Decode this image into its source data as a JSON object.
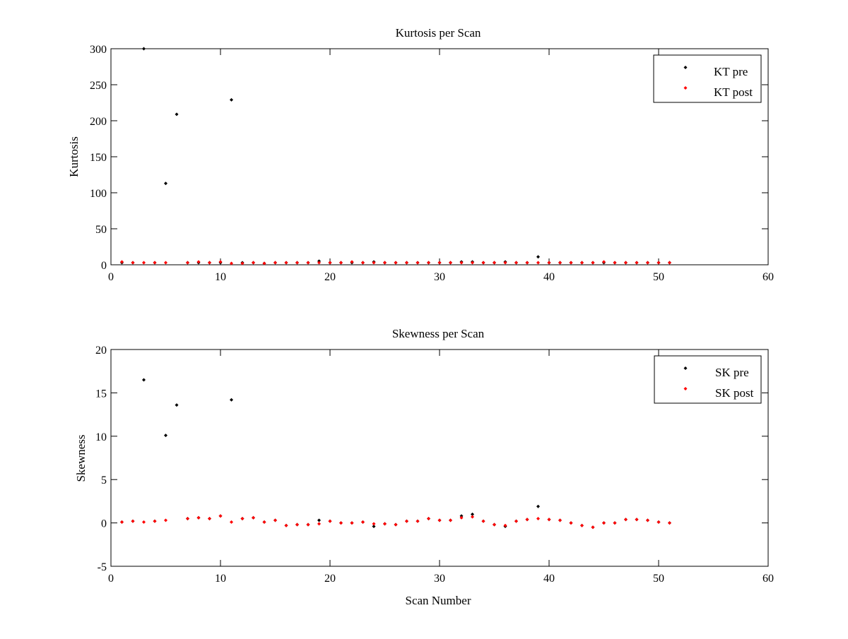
{
  "figure": {
    "background": "#ffffff",
    "colors": {
      "pre": "#000000",
      "post": "#ff0000"
    }
  },
  "chart_data": [
    {
      "type": "scatter",
      "title": "Kurtosis per Scan",
      "xlabel": "",
      "ylabel": "Kurtosis",
      "xlim": [
        0,
        60
      ],
      "ylim": [
        0,
        300
      ],
      "xticks": [
        0,
        10,
        20,
        30,
        40,
        50,
        60
      ],
      "yticks": [
        0,
        50,
        100,
        150,
        200,
        250,
        300
      ],
      "grid": false,
      "legend_position": "top-right",
      "series": [
        {
          "name": "KT pre",
          "color": "#000000",
          "marker": "dot",
          "points": [
            [
              1,
              3
            ],
            [
              2,
              3
            ],
            [
              3,
              300
            ],
            [
              4,
              3
            ],
            [
              5,
              113
            ],
            [
              6,
              209
            ],
            [
              7,
              3
            ],
            [
              8,
              3
            ],
            [
              9,
              3
            ],
            [
              10,
              3
            ],
            [
              11,
              229
            ],
            [
              12,
              3
            ],
            [
              13,
              3
            ],
            [
              14,
              2
            ],
            [
              15,
              3
            ],
            [
              16,
              3
            ],
            [
              17,
              3
            ],
            [
              18,
              3
            ],
            [
              19,
              5
            ],
            [
              20,
              3
            ],
            [
              21,
              3
            ],
            [
              22,
              3
            ],
            [
              23,
              3
            ],
            [
              24,
              4
            ],
            [
              25,
              3
            ],
            [
              26,
              3
            ],
            [
              27,
              3
            ],
            [
              28,
              3
            ],
            [
              29,
              3
            ],
            [
              30,
              3
            ],
            [
              31,
              3
            ],
            [
              32,
              4
            ],
            [
              33,
              4
            ],
            [
              34,
              3
            ],
            [
              35,
              3
            ],
            [
              36,
              4
            ],
            [
              37,
              3
            ],
            [
              38,
              3
            ],
            [
              39,
              11
            ],
            [
              40,
              3
            ],
            [
              41,
              3
            ],
            [
              42,
              3
            ],
            [
              43,
              3
            ],
            [
              44,
              3
            ],
            [
              45,
              3
            ],
            [
              46,
              3
            ],
            [
              47,
              3
            ],
            [
              48,
              3
            ],
            [
              49,
              3
            ],
            [
              50,
              3
            ],
            [
              51,
              3
            ]
          ]
        },
        {
          "name": "KT post",
          "color": "#ff0000",
          "marker": "dot",
          "points": [
            [
              1,
              4
            ],
            [
              2,
              3
            ],
            [
              3,
              3
            ],
            [
              4,
              3
            ],
            [
              5,
              3
            ],
            [
              7,
              3
            ],
            [
              8,
              4
            ],
            [
              9,
              3
            ],
            [
              10,
              4
            ],
            [
              11,
              2
            ],
            [
              12,
              2
            ],
            [
              13,
              3
            ],
            [
              14,
              2
            ],
            [
              15,
              3
            ],
            [
              16,
              3
            ],
            [
              17,
              3
            ],
            [
              18,
              3
            ],
            [
              19,
              3
            ],
            [
              20,
              3
            ],
            [
              21,
              3
            ],
            [
              22,
              4
            ],
            [
              23,
              3
            ],
            [
              24,
              3
            ],
            [
              25,
              3
            ],
            [
              26,
              3
            ],
            [
              27,
              3
            ],
            [
              28,
              3
            ],
            [
              29,
              3
            ],
            [
              30,
              3
            ],
            [
              31,
              3
            ],
            [
              32,
              3
            ],
            [
              33,
              3
            ],
            [
              34,
              3
            ],
            [
              35,
              3
            ],
            [
              36,
              3
            ],
            [
              37,
              3
            ],
            [
              38,
              3
            ],
            [
              39,
              3
            ],
            [
              40,
              3
            ],
            [
              41,
              3
            ],
            [
              42,
              3
            ],
            [
              43,
              3
            ],
            [
              44,
              3
            ],
            [
              45,
              4
            ],
            [
              46,
              3
            ],
            [
              47,
              3
            ],
            [
              48,
              3
            ],
            [
              49,
              3
            ],
            [
              50,
              3
            ],
            [
              51,
              3
            ]
          ]
        }
      ]
    },
    {
      "type": "scatter",
      "title": "Skewness per Scan",
      "xlabel": "Scan Number",
      "ylabel": "Skewness",
      "xlim": [
        0,
        60
      ],
      "ylim": [
        -5,
        20
      ],
      "xticks": [
        0,
        10,
        20,
        30,
        40,
        50,
        60
      ],
      "yticks": [
        -5,
        0,
        5,
        10,
        15,
        20
      ],
      "grid": false,
      "legend_position": "top-right",
      "series": [
        {
          "name": "SK pre",
          "color": "#000000",
          "marker": "dot",
          "points": [
            [
              1,
              0.1
            ],
            [
              2,
              0.2
            ],
            [
              3,
              16.5
            ],
            [
              4,
              0.2
            ],
            [
              5,
              10.1
            ],
            [
              6,
              13.6
            ],
            [
              7,
              0.5
            ],
            [
              8,
              0.6
            ],
            [
              9,
              0.5
            ],
            [
              10,
              0.8
            ],
            [
              11,
              14.2
            ],
            [
              12,
              0.5
            ],
            [
              13,
              0.6
            ],
            [
              14,
              0.1
            ],
            [
              15,
              0.3
            ],
            [
              16,
              -0.3
            ],
            [
              17,
              -0.2
            ],
            [
              18,
              -0.2
            ],
            [
              19,
              0.3
            ],
            [
              20,
              0.2
            ],
            [
              21,
              0.0
            ],
            [
              22,
              0.0
            ],
            [
              23,
              0.1
            ],
            [
              24,
              -0.4
            ],
            [
              25,
              -0.1
            ],
            [
              26,
              -0.2
            ],
            [
              27,
              0.2
            ],
            [
              28,
              0.2
            ],
            [
              29,
              0.5
            ],
            [
              30,
              0.3
            ],
            [
              31,
              0.3
            ],
            [
              32,
              0.8
            ],
            [
              33,
              1.0
            ],
            [
              34,
              0.2
            ],
            [
              35,
              -0.2
            ],
            [
              36,
              -0.4
            ],
            [
              37,
              0.2
            ],
            [
              38,
              0.4
            ],
            [
              39,
              1.9
            ],
            [
              40,
              0.4
            ],
            [
              41,
              0.3
            ],
            [
              42,
              0.0
            ],
            [
              43,
              -0.3
            ],
            [
              44,
              -0.5
            ],
            [
              45,
              0.0
            ],
            [
              46,
              0.0
            ],
            [
              47,
              0.4
            ],
            [
              48,
              0.4
            ],
            [
              49,
              0.3
            ],
            [
              50,
              0.1
            ],
            [
              51,
              0.0
            ]
          ]
        },
        {
          "name": "SK post",
          "color": "#ff0000",
          "marker": "dot",
          "points": [
            [
              1,
              0.1
            ],
            [
              2,
              0.2
            ],
            [
              3,
              0.1
            ],
            [
              4,
              0.2
            ],
            [
              5,
              0.3
            ],
            [
              7,
              0.5
            ],
            [
              8,
              0.6
            ],
            [
              9,
              0.5
            ],
            [
              10,
              0.8
            ],
            [
              11,
              0.1
            ],
            [
              12,
              0.5
            ],
            [
              13,
              0.6
            ],
            [
              14,
              0.1
            ],
            [
              15,
              0.3
            ],
            [
              16,
              -0.3
            ],
            [
              17,
              -0.2
            ],
            [
              18,
              -0.2
            ],
            [
              19,
              -0.1
            ],
            [
              20,
              0.2
            ],
            [
              21,
              0.0
            ],
            [
              22,
              0.0
            ],
            [
              23,
              0.1
            ],
            [
              24,
              -0.1
            ],
            [
              25,
              -0.1
            ],
            [
              26,
              -0.2
            ],
            [
              27,
              0.2
            ],
            [
              28,
              0.2
            ],
            [
              29,
              0.5
            ],
            [
              30,
              0.3
            ],
            [
              31,
              0.3
            ],
            [
              32,
              0.6
            ],
            [
              33,
              0.7
            ],
            [
              34,
              0.2
            ],
            [
              35,
              -0.2
            ],
            [
              36,
              -0.3
            ],
            [
              37,
              0.2
            ],
            [
              38,
              0.4
            ],
            [
              39,
              0.5
            ],
            [
              40,
              0.4
            ],
            [
              41,
              0.3
            ],
            [
              42,
              0.0
            ],
            [
              43,
              -0.3
            ],
            [
              44,
              -0.5
            ],
            [
              45,
              0.0
            ],
            [
              46,
              0.0
            ],
            [
              47,
              0.4
            ],
            [
              48,
              0.4
            ],
            [
              49,
              0.3
            ],
            [
              50,
              0.1
            ],
            [
              51,
              0.0
            ]
          ]
        }
      ]
    }
  ]
}
